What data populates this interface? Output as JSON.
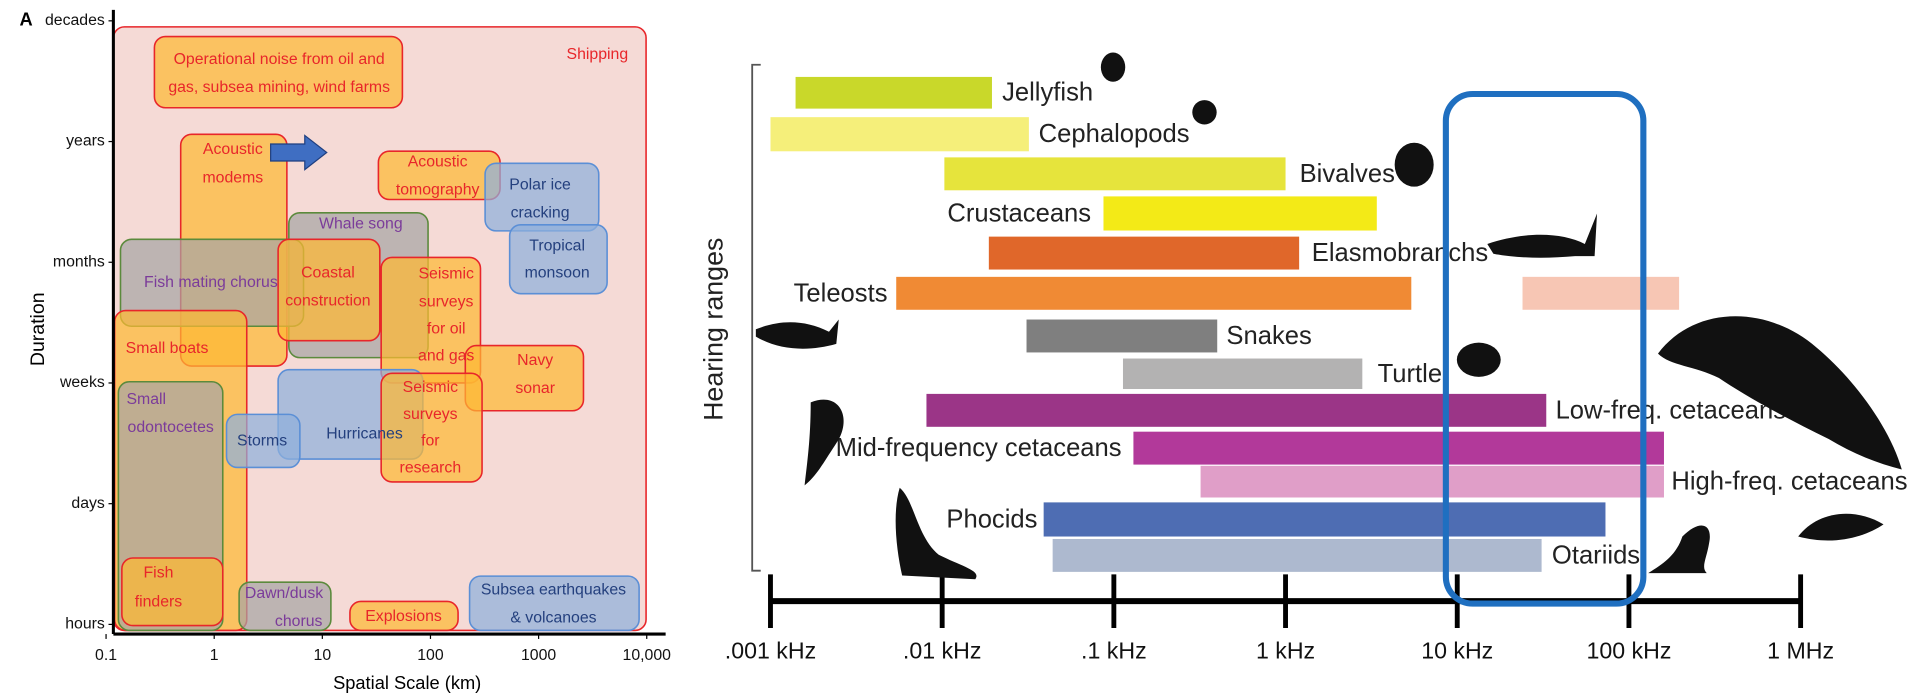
{
  "chart_data": [
    {
      "type": "range-box",
      "panel_label": "A",
      "x_label": "Spatial Scale (km)",
      "y_label": "Duration",
      "log_x": true,
      "xlim": [
        0.1,
        10000
      ],
      "xticks": [
        0.1,
        1,
        10,
        100,
        1000,
        {
          "value": 10000,
          "label": "10,000"
        }
      ],
      "ylim": [
        -0.08,
        5
      ],
      "yticks": [
        {
          "value": 0,
          "label": "hours"
        },
        {
          "value": 1,
          "label": "days"
        },
        {
          "value": 2,
          "label": "weeks"
        },
        {
          "value": 3,
          "label": "months"
        },
        {
          "value": 4,
          "label": "years"
        },
        {
          "value": 5,
          "label": "decades"
        }
      ],
      "boxes": [
        {
          "lines": [
            "Shipping"
          ],
          "x": [
            0.117,
            9860
          ],
          "y": [
            -0.05,
            4.95
          ],
          "color": "#f5dad6",
          "edge": "#e8262a",
          "text_color": "#e8262a"
        },
        {
          "lines": [
            "Operational noise from oil and",
            "gas, subsea mining, wind farms"
          ],
          "x": [
            0.28,
            55
          ],
          "y": [
            4.28,
            4.87
          ],
          "color": "#fdb933",
          "edge": "#e8262a",
          "text_color": "#e8262a"
        },
        {
          "lines": [
            "Acoustic",
            "modems"
          ],
          "x": [
            0.49,
            4.7
          ],
          "y": [
            2.14,
            4.06
          ],
          "color": "#fdb933",
          "edge": "#e8262a",
          "text_color": "#e8262a"
        },
        {
          "lines": [
            "Acoustic",
            "tomography"
          ],
          "x": [
            33,
            440
          ],
          "y": [
            3.52,
            3.92
          ],
          "color": "#fdb933",
          "edge": "#e8262a",
          "text_color": "#e8262a"
        },
        {
          "lines": [
            "Polar ice",
            "cracking"
          ],
          "x": [
            320,
            3600
          ],
          "y": [
            3.26,
            3.82
          ],
          "color": "#8fb0db",
          "edge": "#5b8fd6",
          "text_color": "#24407e"
        },
        {
          "lines": [
            "Tropical",
            "monsoon"
          ],
          "x": [
            540,
            4300
          ],
          "y": [
            2.74,
            3.31
          ],
          "color": "#8fb0db",
          "edge": "#5b8fd6",
          "text_color": "#24407e"
        },
        {
          "lines": [
            "Whale song"
          ],
          "x": [
            4.9,
            95
          ],
          "y": [
            2.21,
            3.41
          ],
          "color": "#a8a5a3",
          "edge": "#5b8a3c",
          "text_color": "#7b3b9a"
        },
        {
          "lines": [
            "Fish mating chorus"
          ],
          "x": [
            0.136,
            6.7
          ],
          "y": [
            2.47,
            3.19
          ],
          "color": "#a8a5a3",
          "edge": "#5b8a3c",
          "text_color": "#7b3b9a"
        },
        {
          "lines": [
            "Coastal",
            "construction"
          ],
          "x": [
            3.9,
            34
          ],
          "y": [
            2.35,
            3.19
          ],
          "color": "#fdb933",
          "edge": "#e8262a",
          "text_color": "#e8262a"
        },
        {
          "lines": [
            "Seismic",
            "surveys",
            "for oil",
            "and gas"
          ],
          "x": [
            35,
            290
          ],
          "y": [
            2.0,
            3.04
          ],
          "color": "#fdb933",
          "edge": "#e8262a",
          "text_color": "#e8262a"
        },
        {
          "lines": [
            "Navy",
            "sonar"
          ],
          "x": [
            210,
            2600
          ],
          "y": [
            1.77,
            2.31
          ],
          "color": "#fdb933",
          "edge": "#e8262a",
          "text_color": "#e8262a"
        },
        {
          "lines": [
            "Small boats"
          ],
          "x": [
            0.12,
            2.0
          ],
          "y": [
            -0.05,
            2.6
          ],
          "color": "#fdb933",
          "edge": "#e8262a",
          "text_color": "#e8262a"
        },
        {
          "lines": [
            "Small",
            "odontocetes"
          ],
          "x": [
            0.13,
            1.2
          ],
          "y": [
            -0.05,
            2.01
          ],
          "color": "#a8a5a3",
          "edge": "#5b8a3c",
          "text_color": "#7b3b9a"
        },
        {
          "lines": [
            "Hurricanes"
          ],
          "x": [
            3.9,
            85
          ],
          "y": [
            1.37,
            2.11
          ],
          "color": "#8fb0db",
          "edge": "#5b8fd6",
          "text_color": "#24407e"
        },
        {
          "lines": [
            "Storms"
          ],
          "x": [
            1.3,
            6.2
          ],
          "y": [
            1.3,
            1.74
          ],
          "color": "#8fb0db",
          "edge": "#5b8fd6",
          "text_color": "#24407e"
        },
        {
          "lines": [
            "Seismic",
            "surveys",
            "for",
            "research"
          ],
          "x": [
            35,
            300
          ],
          "y": [
            1.18,
            2.08
          ],
          "color": "#fdb933",
          "edge": "#e8262a",
          "text_color": "#e8262a"
        },
        {
          "lines": [
            "Fish",
            "finders"
          ],
          "x": [
            0.14,
            1.2
          ],
          "y": [
            -0.01,
            0.55
          ],
          "color": "#fdb933",
          "edge": "#e8262a",
          "text_color": "#e8262a"
        },
        {
          "lines": [
            "Dawn/dusk",
            "chorus"
          ],
          "x": [
            1.7,
            12
          ],
          "y": [
            -0.05,
            0.35
          ],
          "color": "#a8a5a3",
          "edge": "#5b8a3c",
          "text_color": "#7b3b9a"
        },
        {
          "lines": [
            "Explosions"
          ],
          "x": [
            18,
            180
          ],
          "y": [
            -0.05,
            0.19
          ],
          "color": "#fdb933",
          "edge": "#e8262a",
          "text_color": "#e8262a"
        },
        {
          "lines": [
            "Subsea earthquakes",
            "& volcanoes"
          ],
          "x": [
            230,
            8500
          ],
          "y": [
            -0.05,
            0.4
          ],
          "color": "#8fb0db",
          "edge": "#5b8fd6",
          "text_color": "#24407e"
        }
      ]
    },
    {
      "type": "range-bar",
      "y_label": "Hearing ranges",
      "log_x": true,
      "xlim": [
        0.001,
        1000
      ],
      "xticks": [
        {
          "value": 0.001,
          "label": ".001 kHz"
        },
        {
          "value": 0.01,
          "label": ".01 kHz"
        },
        {
          "value": 0.1,
          "label": ".1 kHz"
        },
        {
          "value": 1,
          "label": "1 kHz"
        },
        {
          "value": 10,
          "label": "10 kHz"
        },
        {
          "value": 100,
          "label": "100 kHz"
        },
        {
          "value": 1000,
          "label": "1 MHz"
        }
      ],
      "bars": [
        {
          "name": "Jellyfish",
          "color": "#c9d82a",
          "range": [
            0.0014,
            0.0195
          ]
        },
        {
          "name": "Cephalopods",
          "color": "#f5ef7a",
          "range": [
            0.001,
            0.032
          ]
        },
        {
          "name": "Bivalves",
          "color": "#e6e43c",
          "range": [
            0.0103,
            1
          ]
        },
        {
          "name": "Crustaceans",
          "color": "#f3ea17",
          "range": [
            0.087,
            3.4
          ]
        },
        {
          "name": "Elasmobranchs",
          "color": "#e0672a",
          "range": [
            0.0187,
            1.2
          ]
        },
        {
          "name": "Teleosts",
          "color": "#f08a34",
          "range": [
            0.0054,
            5.4
          ],
          "extra_range": [
            24,
            196
          ],
          "extra_color": "#f7c6b4"
        },
        {
          "name": "Snakes",
          "color": "#7f7f7f",
          "range": [
            0.031,
            0.4
          ]
        },
        {
          "name": "Turtle",
          "color": "#b3b2b2",
          "range": [
            0.113,
            2.8
          ]
        },
        {
          "name": "Low-freq. cetaceans",
          "color": "#9b3587",
          "range": [
            0.0081,
            33
          ]
        },
        {
          "name": "Mid-frequency cetaceans",
          "color": "#b2399a",
          "range": [
            0.13,
            160
          ]
        },
        {
          "name": "High-freq. cetaceans",
          "color": "#e09ec8",
          "range": [
            0.32,
            160
          ]
        },
        {
          "name": "Phocids",
          "color": "#4e6db3",
          "range": [
            0.039,
            73
          ]
        },
        {
          "name": "Otariids",
          "color": "#adb9cf",
          "range": [
            0.044,
            31
          ]
        }
      ]
    }
  ]
}
